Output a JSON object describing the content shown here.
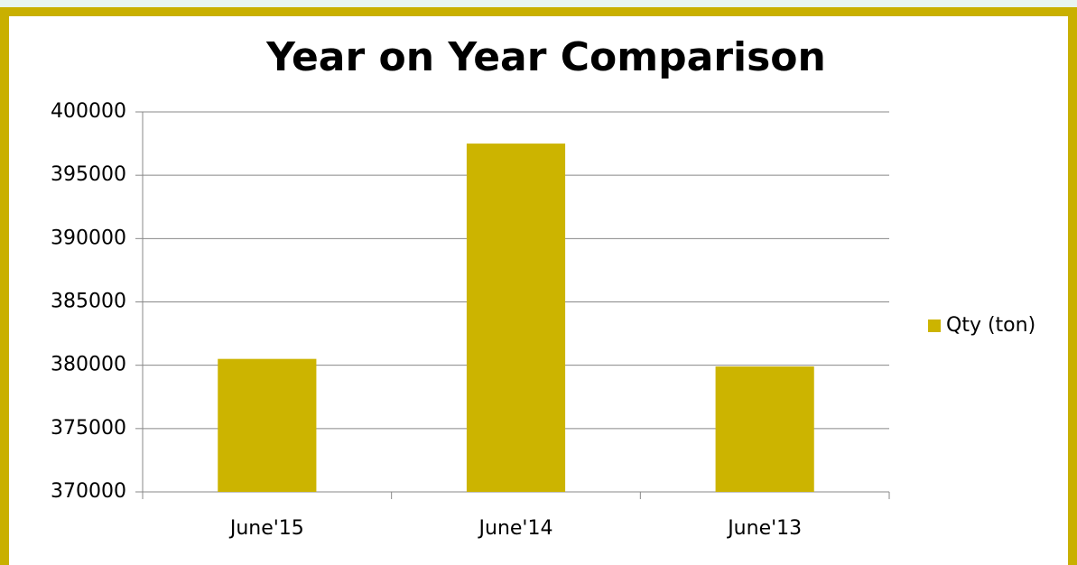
{
  "chart_data": {
    "type": "bar",
    "title": "Year on Year Comparison",
    "categories": [
      "June'15",
      "June'14",
      "June'13"
    ],
    "series": [
      {
        "name": "Qty (ton)",
        "color": "#ccb400",
        "values": [
          380500,
          397500,
          379900
        ]
      }
    ],
    "ylim": [
      370000,
      400000
    ],
    "yticks": [
      370000,
      375000,
      380000,
      385000,
      390000,
      395000,
      400000
    ],
    "grid": true,
    "legend": "right"
  }
}
